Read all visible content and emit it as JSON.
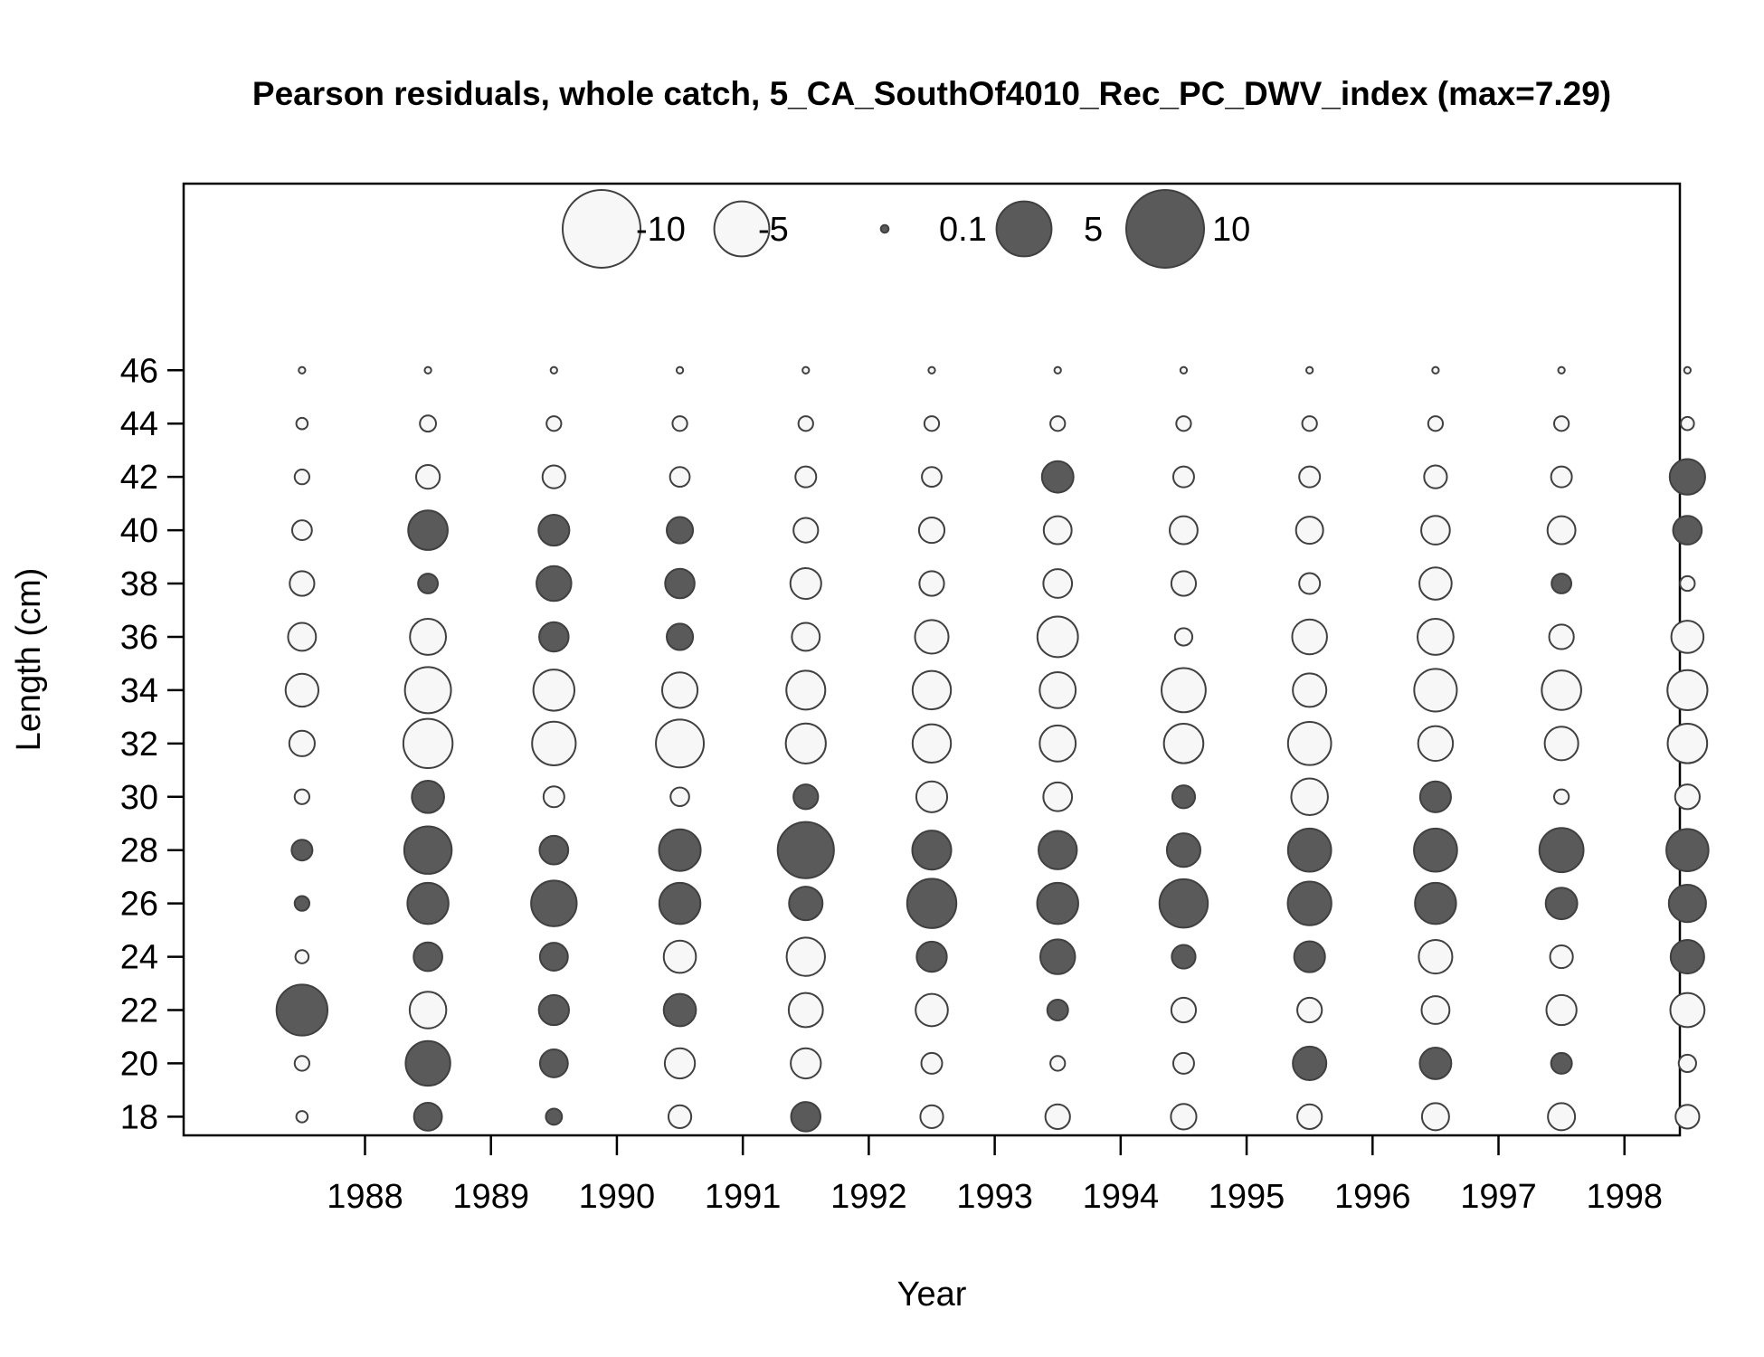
{
  "chart_data": {
    "type": "bubble",
    "title": "Pearson residuals, whole catch, 5_CA_SouthOf4010_Rec_PC_DWV_index (max=7.29)",
    "xlabel": "Year",
    "ylabel": "Length (cm)",
    "x_ticks": [
      "1988",
      "1989",
      "1990",
      "1991",
      "1992",
      "1993",
      "1994",
      "1995",
      "1996",
      "1997",
      "1998"
    ],
    "y_ticks": [
      "18",
      "20",
      "22",
      "24",
      "26",
      "28",
      "30",
      "32",
      "34",
      "36",
      "38",
      "40",
      "42",
      "44",
      "46"
    ],
    "xlim": [
      1986.56,
      1998.44
    ],
    "ylim": [
      17.3,
      53.0
    ],
    "legend": {
      "placement": "top-center",
      "labels": [
        "-10",
        "-5",
        "0.1",
        "5",
        "10"
      ],
      "values": [
        -10,
        -5,
        0.1,
        5,
        10
      ]
    },
    "colors": {
      "positive": "#5a5a5a",
      "negative": "#f7f7f7",
      "outline": "#404040"
    },
    "years": [
      1987.5,
      1988.5,
      1989.5,
      1990.5,
      1991.5,
      1992.5,
      1993.5,
      1994.5,
      1995.5,
      1996.5,
      1997.5,
      1998.5
    ],
    "lengths": [
      18,
      20,
      22,
      24,
      26,
      28,
      30,
      32,
      34,
      36,
      38,
      40,
      42,
      44,
      46
    ],
    "residuals": [
      [
        -0.3,
        -0.5,
        6.0,
        -0.4,
        0.5,
        1.0,
        -0.5,
        -1.5,
        -2.5,
        -1.8,
        -1.4,
        -0.9,
        -0.5,
        -0.3,
        -0.1
      ],
      [
        1.8,
        4.6,
        -3.1,
        1.9,
        3.9,
        5.2,
        2.4,
        -5.6,
        -4.9,
        -3.0,
        0.9,
        3.6,
        -1.3,
        -0.6,
        -0.1
      ],
      [
        0.6,
        1.8,
        2.1,
        1.8,
        4.8,
        1.9,
        -1.0,
        -4.4,
        -3.9,
        2.0,
        2.8,
        2.2,
        -1.2,
        -0.5,
        -0.1
      ],
      [
        -1.2,
        -2.1,
        2.4,
        -2.4,
        3.9,
        4.0,
        -0.8,
        -5.3,
        -2.9,
        1.6,
        2.0,
        1.6,
        -0.9,
        -0.5,
        -0.1
      ],
      [
        2.0,
        -2.1,
        -2.7,
        -3.4,
        2.6,
        7.29,
        1.4,
        -3.7,
        -3.5,
        -1.8,
        -2.2,
        -1.4,
        -1.0,
        -0.5,
        -0.1
      ],
      [
        -1.2,
        -1.0,
        -2.4,
        2.1,
        5.6,
        3.5,
        -2.2,
        -3.4,
        -3.4,
        -2.6,
        -1.4,
        -1.5,
        -0.9,
        -0.5,
        -0.1
      ],
      [
        -1.4,
        -0.5,
        1.0,
        2.8,
        3.9,
        3.4,
        -1.9,
        -3.0,
        -3.0,
        -3.8,
        -1.9,
        -1.8,
        2.3,
        -0.5,
        -0.1
      ],
      [
        -1.5,
        -1.0,
        -1.4,
        1.3,
        5.4,
        2.6,
        1.2,
        -3.6,
        -4.5,
        -0.7,
        -1.4,
        -1.8,
        -1.0,
        -0.5,
        -0.1
      ],
      [
        -1.4,
        2.6,
        -1.4,
        2.2,
        4.4,
        4.3,
        -3.1,
        -4.3,
        -2.6,
        -2.8,
        -1.0,
        -1.7,
        -1.0,
        -0.5,
        -0.1
      ],
      [
        -1.7,
        2.3,
        -1.8,
        -2.6,
        3.9,
        4.3,
        2.2,
        -2.8,
        -4.2,
        -3.0,
        -2.4,
        -1.9,
        -1.2,
        -0.5,
        -0.1
      ],
      [
        -1.7,
        1.0,
        -2.1,
        -1.2,
        2.3,
        4.5,
        -0.5,
        -2.6,
        -3.6,
        -1.4,
        0.9,
        -1.8,
        -1.0,
        -0.5,
        -0.1
      ],
      [
        -1.3,
        -0.7,
        -2.7,
        2.6,
        3.2,
        4.1,
        -1.4,
        -3.6,
        -3.7,
        -2.4,
        -0.5,
        1.9,
        2.9,
        -0.4,
        -0.1
      ]
    ]
  }
}
